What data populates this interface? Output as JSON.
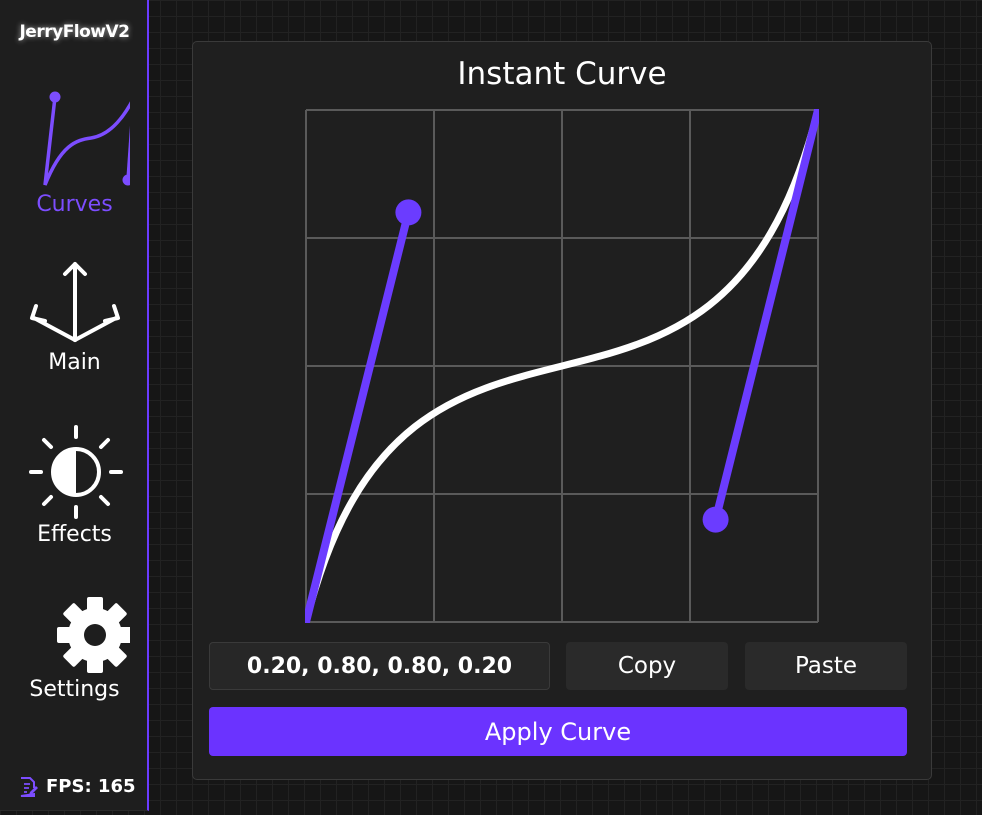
{
  "app": {
    "title": "JerryFlowV2",
    "accent": "#6b3cff"
  },
  "sidebar": {
    "items": [
      {
        "label": "Curves",
        "icon": "curves-icon",
        "active": true
      },
      {
        "label": "Main",
        "icon": "arrows-icon"
      },
      {
        "label": "Effects",
        "icon": "brightness-icon"
      },
      {
        "label": "Settings",
        "icon": "gear-icon"
      }
    ],
    "fps": "FPS: 165",
    "fps_icon": "document-edit-icon"
  },
  "panel": {
    "title": "Instant Curve",
    "curve": {
      "p1": [
        0.2,
        0.8
      ],
      "p2": [
        0.8,
        0.2
      ]
    },
    "value": "0.20, 0.80, 0.80, 0.20",
    "copy": "Copy",
    "paste": "Paste",
    "apply": "Apply Curve"
  }
}
